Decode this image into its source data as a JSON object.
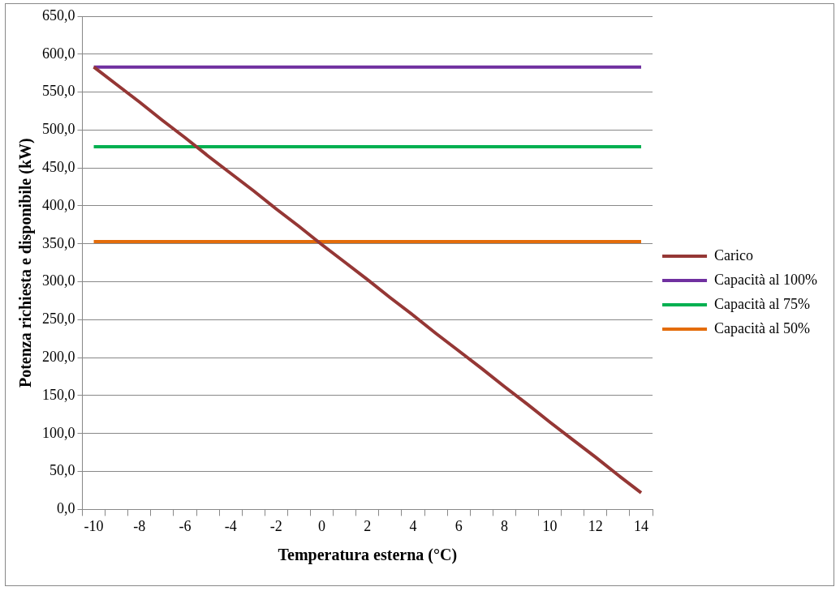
{
  "chart_data": {
    "type": "line",
    "xlabel": "Temperatura esterna (°C)",
    "ylabel": "Potenza richiesta e disponibile (kW)",
    "categories": [
      "-10",
      null,
      "-8",
      null,
      "-6",
      null,
      "-4",
      null,
      "-2",
      null,
      "0",
      null,
      "2",
      null,
      "4",
      null,
      "6",
      null,
      "8",
      null,
      "10",
      null,
      "12",
      null,
      "14"
    ],
    "ylim": [
      0,
      650
    ],
    "yticks": [
      {
        "value": 0,
        "label": "0,0"
      },
      {
        "value": 50,
        "label": "50,0"
      },
      {
        "value": 100,
        "label": "100,0"
      },
      {
        "value": 150,
        "label": "150,0"
      },
      {
        "value": 200,
        "label": "200,0"
      },
      {
        "value": 250,
        "label": "250,0"
      },
      {
        "value": 300,
        "label": "300,0"
      },
      {
        "value": 350,
        "label": "350,0"
      },
      {
        "value": 400,
        "label": "400,0"
      },
      {
        "value": 450,
        "label": "450,0"
      },
      {
        "value": 500,
        "label": "500,0"
      },
      {
        "value": 550,
        "label": "550,0"
      },
      {
        "value": 600,
        "label": "600,0"
      },
      {
        "value": 650,
        "label": "650,0"
      }
    ],
    "grid": "y",
    "legend": "right",
    "marker": "none",
    "line_style": "solid",
    "series": [
      {
        "name": "Carico",
        "color": "#953735",
        "values": [
          583,
          560,
          537,
          513,
          490,
          466,
          443,
          420,
          396,
          373,
          349,
          326,
          303,
          279,
          256,
          232,
          209,
          186,
          162,
          139,
          115,
          92,
          69,
          45,
          22
        ]
      },
      {
        "name": "Capacità al 100%",
        "color": "#7030a0",
        "values": [
          583,
          583,
          583,
          583,
          583,
          583,
          583,
          583,
          583,
          583,
          583,
          583,
          583,
          583,
          583,
          583,
          583,
          583,
          583,
          583,
          583,
          583,
          583,
          583,
          583
        ]
      },
      {
        "name": "Capacità al 75%",
        "color": "#00b050",
        "values": [
          478,
          478,
          478,
          478,
          478,
          478,
          478,
          478,
          478,
          478,
          478,
          478,
          478,
          478,
          478,
          478,
          478,
          478,
          478,
          478,
          478,
          478,
          478,
          478,
          478
        ]
      },
      {
        "name": "Capacità al 50%",
        "color": "#e46c0a",
        "values": [
          353,
          353,
          353,
          353,
          353,
          353,
          353,
          353,
          353,
          353,
          353,
          353,
          353,
          353,
          353,
          353,
          353,
          353,
          353,
          353,
          353,
          353,
          353,
          353,
          353
        ]
      }
    ]
  }
}
